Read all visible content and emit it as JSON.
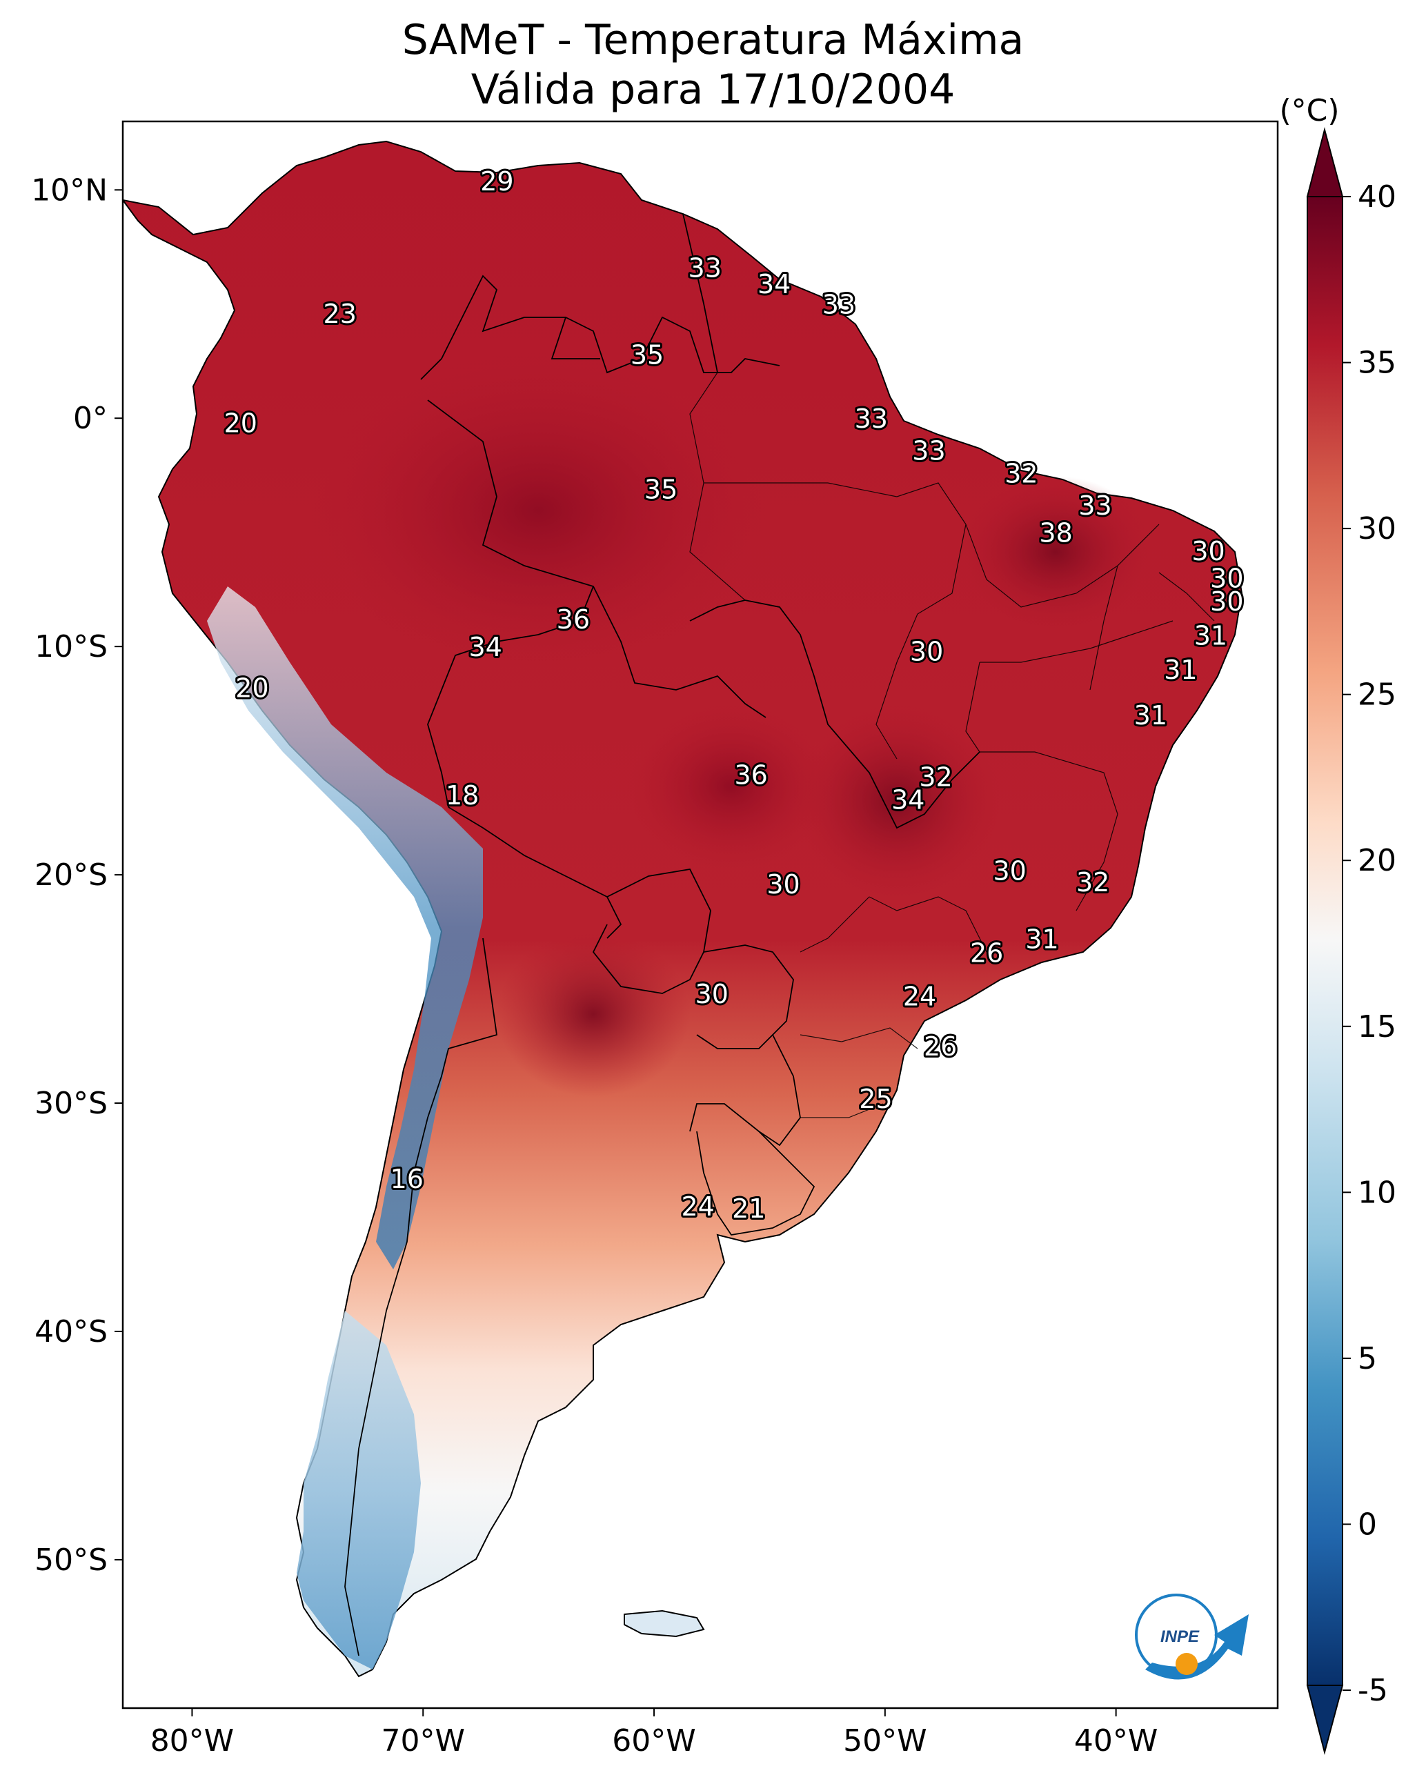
{
  "title": {
    "line1": "SAMeT - Temperatura Máxima",
    "line2": "Válida para 17/10/2004"
  },
  "axes": {
    "lon_ticks": [
      "80°W",
      "70°W",
      "60°W",
      "50°W",
      "40°W"
    ],
    "lat_ticks": [
      "10°N",
      "0°",
      "10°S",
      "20°S",
      "30°S",
      "40°S",
      "50°S"
    ]
  },
  "colorbar": {
    "unit": "(°C)",
    "ticks": [
      "40",
      "35",
      "30",
      "25",
      "20",
      "15",
      "10",
      "5",
      "0",
      "-5"
    ],
    "range": [
      -5,
      40
    ],
    "colors": [
      "#08306b",
      "#2166ac",
      "#4393c3",
      "#92c5de",
      "#d1e5f0",
      "#f7f7f7",
      "#fddbc7",
      "#f4a582",
      "#d6604d",
      "#b2182b",
      "#67001f"
    ]
  },
  "contour_labels": [
    {
      "text": "29",
      "lon": -66.8,
      "lat": 10.3
    },
    {
      "text": "33",
      "lon": -57.8,
      "lat": 6.5
    },
    {
      "text": "34",
      "lon": -54.8,
      "lat": 5.8
    },
    {
      "text": "33",
      "lon": -52.0,
      "lat": 4.9
    },
    {
      "text": "23",
      "lon": -73.6,
      "lat": 4.5
    },
    {
      "text": "35",
      "lon": -60.3,
      "lat": 2.7
    },
    {
      "text": "20",
      "lon": -77.9,
      "lat": -0.3
    },
    {
      "text": "33",
      "lon": -50.6,
      "lat": -0.1
    },
    {
      "text": "33",
      "lon": -48.1,
      "lat": -1.5
    },
    {
      "text": "32",
      "lon": -44.1,
      "lat": -2.5
    },
    {
      "text": "35",
      "lon": -59.7,
      "lat": -3.2
    },
    {
      "text": "33",
      "lon": -40.9,
      "lat": -3.9
    },
    {
      "text": "38",
      "lon": -42.6,
      "lat": -5.1
    },
    {
      "text": "30",
      "lon": -36.0,
      "lat": -5.9
    },
    {
      "text": "30",
      "lon": -35.2,
      "lat": -7.1
    },
    {
      "text": "30",
      "lon": -35.2,
      "lat": -8.1
    },
    {
      "text": "36",
      "lon": -63.5,
      "lat": -8.9
    },
    {
      "text": "31",
      "lon": -35.9,
      "lat": -9.6
    },
    {
      "text": "34",
      "lon": -67.3,
      "lat": -10.1
    },
    {
      "text": "30",
      "lon": -48.2,
      "lat": -10.3
    },
    {
      "text": "31",
      "lon": -37.2,
      "lat": -11.1
    },
    {
      "text": "20",
      "lon": -77.4,
      "lat": -11.9
    },
    {
      "text": "31",
      "lon": -38.5,
      "lat": -13.1
    },
    {
      "text": "36",
      "lon": -55.8,
      "lat": -15.7
    },
    {
      "text": "32",
      "lon": -47.8,
      "lat": -15.8
    },
    {
      "text": "34",
      "lon": -49.0,
      "lat": -16.8
    },
    {
      "text": "18",
      "lon": -68.3,
      "lat": -16.6
    },
    {
      "text": "30",
      "lon": -44.6,
      "lat": -19.9
    },
    {
      "text": "32",
      "lon": -41.0,
      "lat": -20.4
    },
    {
      "text": "30",
      "lon": -54.4,
      "lat": -20.5
    },
    {
      "text": "31",
      "lon": -43.2,
      "lat": -22.9
    },
    {
      "text": "26",
      "lon": -45.6,
      "lat": -23.5
    },
    {
      "text": "30",
      "lon": -57.5,
      "lat": -25.3
    },
    {
      "text": "24",
      "lon": -48.5,
      "lat": -25.4
    },
    {
      "text": "26",
      "lon": -47.6,
      "lat": -27.6
    },
    {
      "text": "25",
      "lon": -50.4,
      "lat": -29.9
    },
    {
      "text": "16",
      "lon": -70.7,
      "lat": -33.4
    },
    {
      "text": "24",
      "lon": -58.1,
      "lat": -34.6
    },
    {
      "text": "21",
      "lon": -55.9,
      "lat": -34.7
    }
  ],
  "logo": {
    "label": "INPE"
  }
}
